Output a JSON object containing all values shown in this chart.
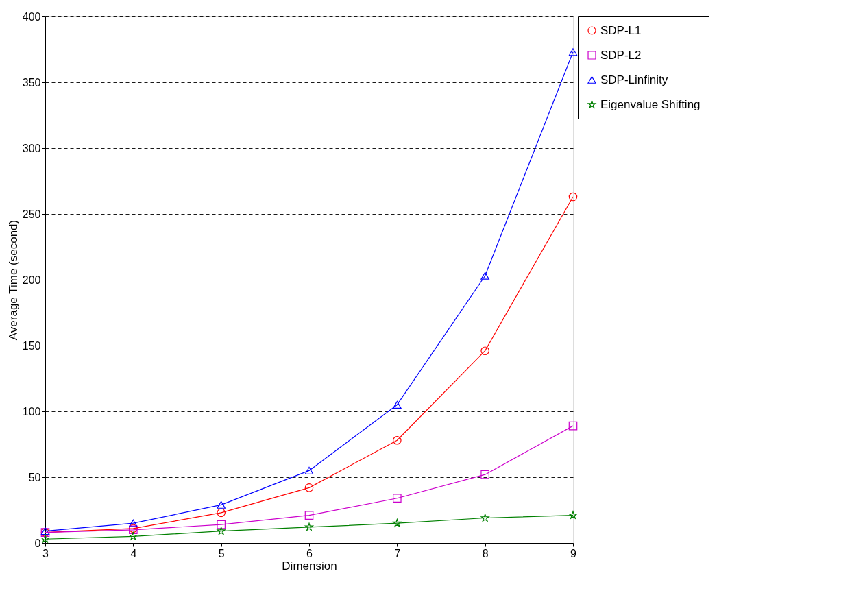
{
  "chart_data": {
    "type": "line",
    "xlabel": "Dimension",
    "ylabel": "Average Time (second)",
    "x": [
      3,
      4,
      5,
      6,
      7,
      8,
      9
    ],
    "series": [
      {
        "name": "SDP-L1",
        "color": "#ff0000",
        "marker": "circle",
        "values": [
          8,
          11,
          23,
          42,
          78,
          146,
          263
        ]
      },
      {
        "name": "SDP-L2",
        "color": "#cc00cc",
        "marker": "square",
        "values": [
          8,
          10,
          14,
          21,
          34,
          52,
          89
        ]
      },
      {
        "name": "SDP-Linfinity",
        "color": "#0000ff",
        "marker": "triangle",
        "values": [
          9,
          15,
          29,
          55,
          105,
          203,
          373
        ]
      },
      {
        "name": "Eigenvalue Shifting",
        "color": "#008000",
        "marker": "star",
        "values": [
          3,
          5,
          9,
          12,
          15,
          19,
          21
        ]
      }
    ],
    "xlim": [
      3,
      9
    ],
    "xticks": [
      3,
      4,
      5,
      6,
      7,
      8,
      9
    ],
    "ylim": [
      0,
      400
    ],
    "yticks": [
      0,
      50,
      100,
      150,
      200,
      250,
      300,
      350,
      400
    ],
    "grid": "y",
    "legend": "right",
    "line_style": "solid"
  }
}
